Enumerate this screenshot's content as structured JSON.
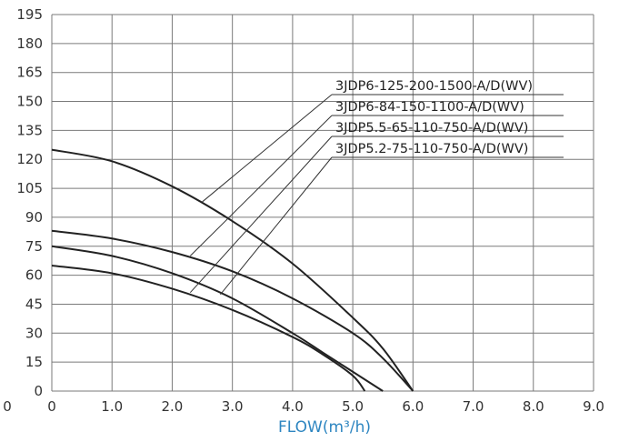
{
  "chart_data": {
    "type": "line",
    "title": "",
    "xlabel": "FLOW(m³/h)",
    "ylabel": "",
    "xlim": [
      0,
      9
    ],
    "ylim": [
      0,
      195
    ],
    "x_ticks": [
      "0",
      "1.0",
      "2.0",
      "3.0",
      "4.0",
      "5.0",
      "6.0",
      "7.0",
      "8.0",
      "9.0"
    ],
    "y_ticks": [
      "0",
      "15",
      "30",
      "45",
      "60",
      "75",
      "90",
      "105",
      "120",
      "135",
      "150",
      "165",
      "180",
      "195"
    ],
    "grid": true,
    "series": [
      {
        "name": "3JDP6-125-200-1500-A/D(WV)",
        "x": [
          0,
          1,
          2,
          3,
          4,
          5,
          5.5,
          6
        ],
        "y": [
          125,
          119,
          106,
          88,
          66,
          38,
          22,
          0
        ],
        "label_anchor": [
          2.5,
          98
        ]
      },
      {
        "name": "3JDP6-84-150-1100-A/D(WV)",
        "x": [
          0,
          1,
          2,
          3,
          4,
          5,
          5.5,
          6
        ],
        "y": [
          83,
          79,
          72,
          62,
          48,
          30,
          17,
          0
        ],
        "label_anchor": [
          2.3,
          70
        ]
      },
      {
        "name": "3JDP5.5-65-110-750-A/D(WV)",
        "x": [
          0,
          1,
          2,
          3,
          4,
          4.5,
          5,
          5.5
        ],
        "y": [
          75,
          70,
          61,
          48,
          30,
          20,
          10,
          0
        ],
        "label_anchor": [
          2.3,
          51
        ]
      },
      {
        "name": "3JDP5.2-75-110-750-A/D(WV)",
        "x": [
          0,
          1,
          2,
          3,
          4,
          4.5,
          5,
          5.2
        ],
        "y": [
          65,
          61,
          53,
          42,
          28,
          19,
          8,
          0
        ],
        "label_anchor": [
          2.8,
          50
        ]
      }
    ]
  }
}
